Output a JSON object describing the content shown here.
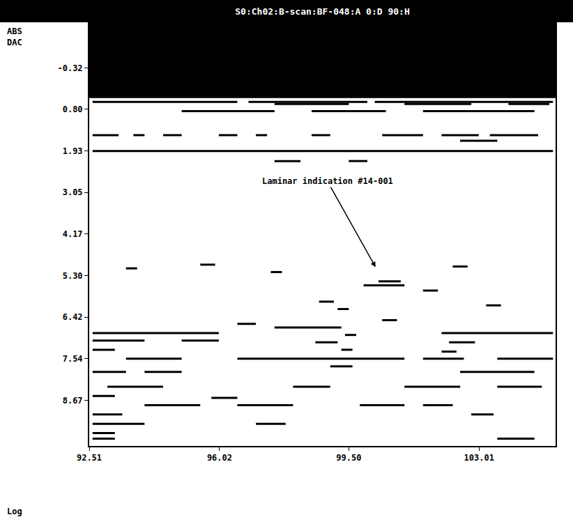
{
  "chart_data": {
    "type": "b-scan",
    "title": "S0:Ch02:B-scan:BF-048:A 0:D 90:H",
    "ylabel": "ABS DAC",
    "note": "Log",
    "color": "#000000",
    "grid": false,
    "xlim": [
      92.51,
      105.07
    ],
    "ylim": [
      9.9,
      -1.55
    ],
    "xticks": [
      92.51,
      96.02,
      {
        "value": 99.5,
        "label": "99.50"
      },
      103.01
    ],
    "yticks": [
      -0.32,
      {
        "value": 0.8,
        "label": "0.80"
      },
      1.93,
      3.05,
      4.17,
      {
        "value": 5.3,
        "label": "5.30"
      },
      6.42,
      7.54,
      8.67
    ],
    "masked_band": [
      -1.55,
      0.5
    ],
    "annotations": [
      {
        "text": "Laminar indication #14-001",
        "x": 100.24,
        "y": 5.1
      }
    ],
    "segments": [
      [
        92.6,
        96.5,
        0.6
      ],
      [
        96.8,
        100.0,
        0.6
      ],
      [
        100.2,
        105.0,
        0.6
      ],
      [
        97.5,
        99.5,
        0.66
      ],
      [
        101.0,
        102.8,
        0.66
      ],
      [
        103.8,
        104.9,
        0.66
      ],
      [
        95.0,
        97.5,
        0.85
      ],
      [
        98.5,
        100.5,
        0.85
      ],
      [
        101.5,
        104.5,
        0.85
      ],
      [
        92.6,
        93.3,
        1.5
      ],
      [
        93.7,
        94.0,
        1.5
      ],
      [
        94.5,
        95.0,
        1.5
      ],
      [
        96.0,
        96.5,
        1.5
      ],
      [
        97.0,
        97.3,
        1.5
      ],
      [
        98.5,
        99.0,
        1.5
      ],
      [
        100.4,
        101.5,
        1.5
      ],
      [
        102.0,
        103.0,
        1.5
      ],
      [
        103.3,
        104.6,
        1.5
      ],
      [
        102.5,
        103.5,
        1.65
      ],
      [
        92.6,
        105.0,
        1.93
      ],
      [
        97.5,
        98.2,
        2.2
      ],
      [
        99.5,
        100.0,
        2.2
      ],
      [
        93.5,
        93.8,
        5.1
      ],
      [
        95.5,
        95.9,
        5.0
      ],
      [
        97.4,
        97.7,
        5.2
      ],
      [
        102.3,
        102.7,
        5.05
      ],
      [
        100.3,
        100.9,
        5.45
      ],
      [
        99.9,
        101.0,
        5.56
      ],
      [
        101.5,
        101.9,
        5.7
      ],
      [
        98.7,
        99.1,
        6.0
      ],
      [
        99.2,
        99.5,
        6.2
      ],
      [
        96.5,
        97.0,
        6.6
      ],
      [
        100.4,
        100.8,
        6.5
      ],
      [
        103.2,
        103.6,
        6.1
      ],
      [
        92.6,
        96.0,
        6.85
      ],
      [
        102.0,
        105.0,
        6.85
      ],
      [
        97.5,
        99.3,
        6.7
      ],
      [
        99.4,
        99.7,
        6.9
      ],
      [
        92.6,
        94.0,
        7.05
      ],
      [
        95.0,
        96.0,
        7.05
      ],
      [
        98.6,
        99.2,
        7.1
      ],
      [
        102.2,
        102.9,
        7.1
      ],
      [
        92.6,
        93.2,
        7.3
      ],
      [
        99.3,
        99.6,
        7.3
      ],
      [
        102.0,
        102.4,
        7.35
      ],
      [
        93.5,
        95.0,
        7.54
      ],
      [
        96.5,
        101.0,
        7.54
      ],
      [
        101.5,
        102.6,
        7.54
      ],
      [
        103.5,
        105.0,
        7.54
      ],
      [
        92.6,
        93.5,
        7.9
      ],
      [
        94.0,
        95.0,
        7.9
      ],
      [
        102.5,
        104.5,
        7.9
      ],
      [
        99.0,
        99.6,
        7.75
      ],
      [
        93.0,
        94.5,
        8.3
      ],
      [
        98.0,
        99.0,
        8.3
      ],
      [
        101.0,
        102.5,
        8.3
      ],
      [
        103.5,
        104.7,
        8.3
      ],
      [
        92.6,
        93.2,
        8.55
      ],
      [
        95.8,
        96.5,
        8.6
      ],
      [
        94.0,
        95.5,
        8.8
      ],
      [
        96.5,
        98.0,
        8.8
      ],
      [
        99.8,
        101.0,
        8.8
      ],
      [
        101.5,
        102.3,
        8.8
      ],
      [
        92.6,
        93.4,
        9.05
      ],
      [
        102.8,
        103.4,
        9.05
      ],
      [
        92.6,
        94.0,
        9.3
      ],
      [
        97.0,
        97.8,
        9.3
      ],
      [
        92.6,
        93.2,
        9.55
      ],
      [
        92.6,
        93.2,
        9.7
      ],
      [
        103.5,
        104.5,
        9.7
      ]
    ]
  }
}
